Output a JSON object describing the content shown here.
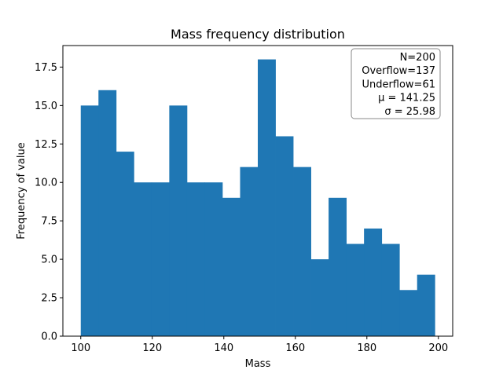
{
  "chart_data": {
    "type": "bar",
    "title": "Mass frequency distribution",
    "xlabel": "Mass",
    "ylabel": "Frequency of value",
    "xlim": [
      95,
      204
    ],
    "ylim": [
      0,
      18.9
    ],
    "bin_edges": [
      100.0,
      104.95,
      109.9,
      114.85,
      119.8,
      124.75,
      129.7,
      134.65,
      139.6,
      144.55,
      149.5,
      154.45,
      159.4,
      164.35,
      169.3,
      174.25,
      179.2,
      184.15,
      189.1,
      194.05,
      199.0
    ],
    "values": [
      15,
      16,
      12,
      10,
      10,
      15,
      10,
      10,
      9,
      11,
      18,
      13,
      11,
      5,
      9,
      6,
      7,
      6,
      3,
      4
    ],
    "x_ticks": [
      100,
      120,
      140,
      160,
      180,
      200
    ],
    "x_tick_labels": [
      "100",
      "120",
      "140",
      "160",
      "180",
      "200"
    ],
    "y_ticks": [
      0,
      2.5,
      5,
      7.5,
      10,
      12.5,
      15,
      17.5
    ],
    "y_tick_labels": [
      "0.0",
      "2.5",
      "5.0",
      "7.5",
      "10.0",
      "12.5",
      "15.0",
      "17.5"
    ],
    "bar_color": "#1f77b4",
    "grid": false,
    "legend": "none",
    "stats_box": {
      "placement": "top-right",
      "lines": [
        "N=200",
        "Overflow=137",
        "Underflow=61",
        "μ = 141.25",
        "σ = 25.98"
      ]
    }
  }
}
